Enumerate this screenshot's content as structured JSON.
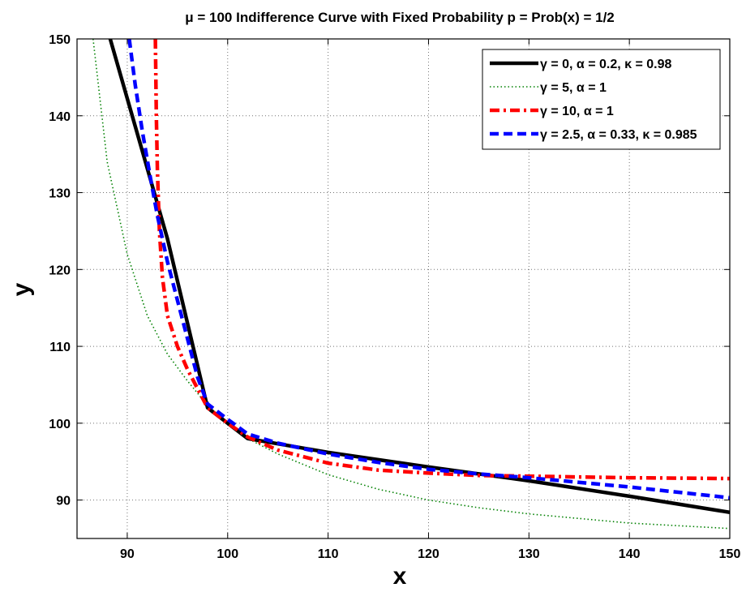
{
  "chart_data": {
    "type": "line",
    "title": "μ = 100 Indifference Curve with Fixed Probability p = Prob(x) = 1/2",
    "xlabel": "x",
    "ylabel": "y",
    "xlim": [
      85,
      150
    ],
    "ylim": [
      85,
      150
    ],
    "xticks": [
      90,
      100,
      110,
      120,
      130,
      140,
      150
    ],
    "yticks": [
      90,
      100,
      110,
      120,
      130,
      140,
      150
    ],
    "grid": true,
    "legend_position": "top-right",
    "series": [
      {
        "name": "γ = 0, α = 0.2, κ = 0.98",
        "color": "#000000",
        "style": "solid",
        "x": [
          88.3,
          94,
          98,
          102,
          110,
          120,
          130,
          140,
          150
        ],
        "y": [
          150,
          124,
          102,
          98,
          96.2,
          94.3,
          92.5,
          90.5,
          88.4
        ]
      },
      {
        "name": "γ = 5, α = 1",
        "color": "#008000",
        "style": "dotted",
        "x": [
          86.6,
          88,
          90,
          92,
          94,
          96,
          98,
          100,
          102,
          105,
          110,
          115,
          120,
          125,
          130,
          140,
          150
        ],
        "y": [
          150,
          134,
          122,
          114,
          109,
          105.5,
          102.3,
          100,
          98,
          96,
          93.3,
          91.4,
          90,
          89,
          88.2,
          87,
          86.3
        ]
      },
      {
        "name": "γ = 10, α = 1",
        "color": "#ff0000",
        "style": "dashdot",
        "x": [
          92.8,
          92.9,
          93,
          93.2,
          93.5,
          94,
          95,
          96,
          97,
          98,
          100,
          102,
          105,
          110,
          115,
          120,
          125,
          130,
          140,
          150
        ],
        "y": [
          150,
          140,
          133,
          125,
          119,
          114,
          110,
          107,
          104.5,
          102,
          100,
          98.2,
          96.5,
          94.8,
          93.9,
          93.5,
          93.2,
          93.1,
          92.9,
          92.8
        ]
      },
      {
        "name": "γ = 2.5, α = 0.33, κ = 0.985",
        "color": "#0000ff",
        "style": "dashed",
        "x": [
          90.2,
          90.8,
          91.5,
          92.3,
          93,
          94,
          95,
          96,
          97,
          98,
          100,
          102,
          105,
          110,
          115,
          120,
          125,
          130,
          140,
          150
        ],
        "y": [
          150,
          144,
          138,
          132,
          127,
          121,
          116,
          111,
          106,
          102.5,
          100.5,
          98.6,
          97.4,
          96,
          94.9,
          94,
          93.4,
          92.9,
          91.7,
          90.3
        ]
      }
    ]
  }
}
